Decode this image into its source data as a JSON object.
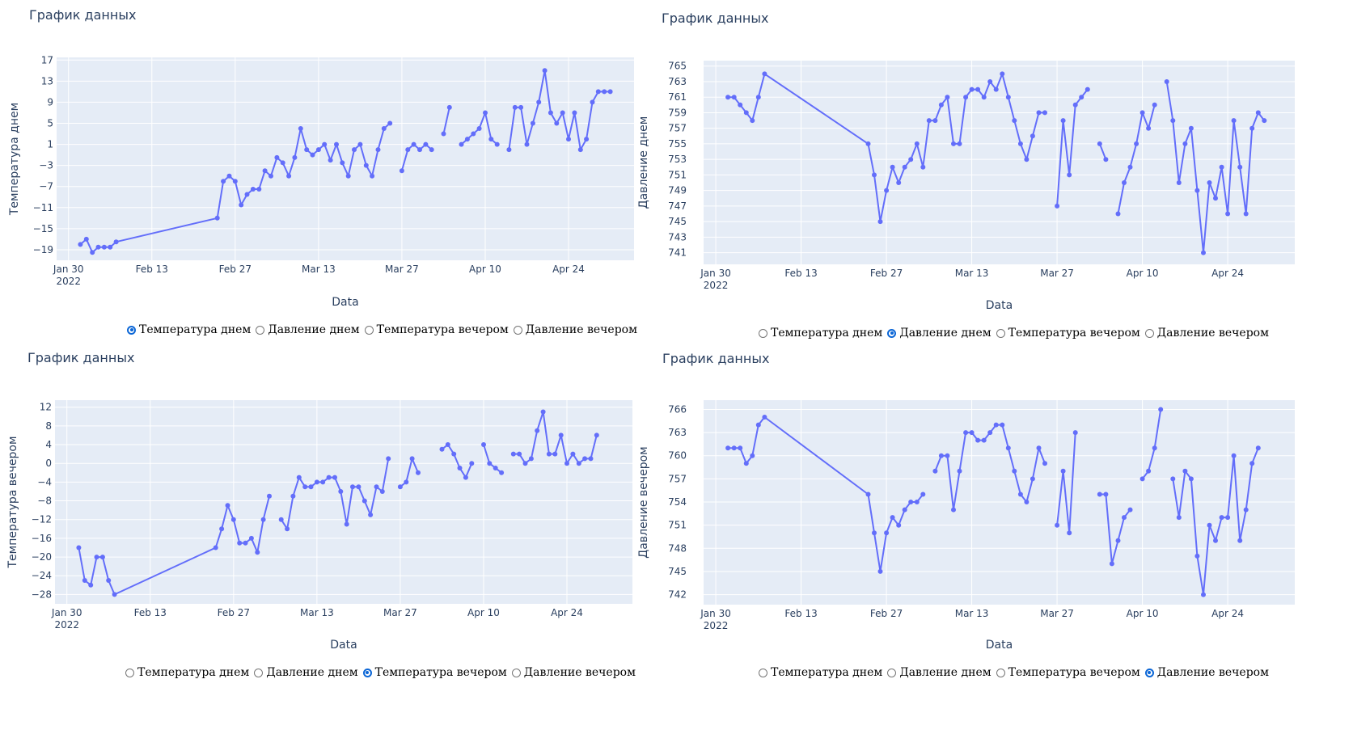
{
  "x_ticks": [
    "Jan 30",
    "Feb 13",
    "Feb 27",
    "Mar 13",
    "Mar 27",
    "Apr 10",
    "Apr 24"
  ],
  "x_tick_year": "2022",
  "radio_options": [
    "Температура днем",
    "Давление днем",
    "Температура вечером",
    "Давление вечером"
  ],
  "colors": {
    "line": "#636efa",
    "plot_bg": "#e5ecf6",
    "grid": "#ffffff",
    "radio_on": "#0b66d6"
  },
  "chart_data": [
    {
      "type": "line",
      "title": "График данных",
      "xlabel": "Data",
      "ylabel": "Температура днем",
      "selected_radio": 0,
      "yticks": [
        17,
        13,
        9,
        5,
        1,
        -3,
        -7,
        -11,
        -15,
        -19
      ],
      "ylim": [
        -21,
        17.5
      ],
      "xlim": [
        "2022-01-28",
        "2022-05-05"
      ],
      "x": [
        "2022-02-01",
        "2022-02-02",
        "2022-02-03",
        "2022-02-04",
        "2022-02-05",
        "2022-02-06",
        "2022-02-07",
        "2022-02-24",
        "2022-02-25",
        "2022-02-26",
        "2022-02-27",
        "2022-02-28",
        "2022-03-01",
        "2022-03-02",
        "2022-03-03",
        "2022-03-04",
        "2022-03-05",
        "2022-03-06",
        "2022-03-07",
        "2022-03-08",
        "2022-03-09",
        "2022-03-10",
        "2022-03-11",
        "2022-03-12",
        "2022-03-13",
        "2022-03-14",
        "2022-03-15",
        "2022-03-16",
        "2022-03-17",
        "2022-03-18",
        "2022-03-19",
        "2022-03-20",
        "2022-03-21",
        "2022-03-22",
        "2022-03-23",
        "2022-03-24",
        "2022-03-25",
        "2022-03-26",
        "2022-03-27",
        "2022-03-28",
        "2022-03-29",
        "2022-03-30",
        "2022-03-31",
        "2022-04-01",
        "2022-04-02",
        "2022-04-03",
        "2022-04-04",
        "2022-04-05",
        "2022-04-06",
        "2022-04-07",
        "2022-04-08",
        "2022-04-09",
        "2022-04-10",
        "2022-04-11",
        "2022-04-12",
        "2022-04-13",
        "2022-04-14",
        "2022-04-15",
        "2022-04-16",
        "2022-04-17",
        "2022-04-18",
        "2022-04-19",
        "2022-04-20",
        "2022-04-21",
        "2022-04-22",
        "2022-04-23",
        "2022-04-24",
        "2022-04-25",
        "2022-04-26",
        "2022-04-27",
        "2022-04-28",
        "2022-04-29",
        "2022-04-30",
        "2022-05-01"
      ],
      "y": [
        -18,
        -17,
        -19.5,
        -18.5,
        -18.5,
        -18.5,
        -17.5,
        -13,
        -6,
        -5,
        -6,
        -10.5,
        -8.5,
        -7.5,
        -7.5,
        -4,
        -5,
        -1.5,
        -2.5,
        -5,
        -1.5,
        4,
        0,
        -1,
        0,
        1,
        -2,
        1,
        -2.5,
        -5,
        0,
        1,
        -3,
        -5,
        0,
        4,
        5,
        null,
        -4,
        0,
        1,
        0,
        1,
        0,
        null,
        3,
        8,
        null,
        1,
        2,
        3,
        4,
        7,
        2,
        1,
        null,
        0,
        8,
        8,
        1,
        5,
        9,
        15,
        7,
        5,
        7,
        2,
        7,
        0,
        2,
        9,
        11,
        11,
        11
      ]
    },
    {
      "type": "line",
      "title": "График данных",
      "xlabel": "Data",
      "ylabel": "Давление днем",
      "selected_radio": 1,
      "yticks": [
        765,
        763,
        761,
        759,
        757,
        755,
        753,
        751,
        749,
        747,
        745,
        743,
        741
      ],
      "ylim": [
        739.5,
        765.7
      ],
      "xlim": [
        "2022-01-28",
        "2022-05-05"
      ],
      "x": [
        "2022-02-01",
        "2022-02-02",
        "2022-02-03",
        "2022-02-04",
        "2022-02-05",
        "2022-02-06",
        "2022-02-07",
        "2022-02-24",
        "2022-02-25",
        "2022-02-26",
        "2022-02-27",
        "2022-02-28",
        "2022-03-01",
        "2022-03-02",
        "2022-03-03",
        "2022-03-04",
        "2022-03-05",
        "2022-03-06",
        "2022-03-07",
        "2022-03-08",
        "2022-03-09",
        "2022-03-10",
        "2022-03-11",
        "2022-03-12",
        "2022-03-13",
        "2022-03-14",
        "2022-03-15",
        "2022-03-16",
        "2022-03-17",
        "2022-03-18",
        "2022-03-19",
        "2022-03-20",
        "2022-03-21",
        "2022-03-22",
        "2022-03-23",
        "2022-03-24",
        "2022-03-25",
        "2022-03-26",
        "2022-03-27",
        "2022-03-28",
        "2022-03-29",
        "2022-03-30",
        "2022-03-31",
        "2022-04-01",
        "2022-04-02",
        "2022-04-03",
        "2022-04-04",
        "2022-04-05",
        "2022-04-06",
        "2022-04-07",
        "2022-04-08",
        "2022-04-09",
        "2022-04-10",
        "2022-04-11",
        "2022-04-12",
        "2022-04-13",
        "2022-04-14",
        "2022-04-15",
        "2022-04-16",
        "2022-04-17",
        "2022-04-18",
        "2022-04-19",
        "2022-04-20",
        "2022-04-21",
        "2022-04-22",
        "2022-04-23",
        "2022-04-24",
        "2022-04-25",
        "2022-04-26",
        "2022-04-27",
        "2022-04-28",
        "2022-04-29",
        "2022-04-30",
        "2022-05-01"
      ],
      "y": [
        761,
        761,
        760,
        759,
        758,
        761,
        764,
        755,
        751,
        745,
        749,
        752,
        750,
        752,
        753,
        755,
        752,
        758,
        758,
        760,
        761,
        755,
        755,
        761,
        762,
        762,
        761,
        763,
        762,
        764,
        761,
        758,
        755,
        753,
        756,
        759,
        759,
        null,
        747,
        758,
        751,
        760,
        761,
        762,
        null,
        755,
        753,
        null,
        746,
        750,
        752,
        755,
        759,
        757,
        760,
        null,
        763,
        758,
        750,
        755,
        757,
        749,
        741,
        750,
        748,
        752,
        746,
        758,
        752,
        746,
        757,
        759,
        758,
        null
      ]
    },
    {
      "type": "line",
      "title": "График данных",
      "xlabel": "Data",
      "ylabel": "Температура вечером",
      "selected_radio": 2,
      "yticks": [
        12,
        8,
        4,
        0,
        -4,
        -8,
        -12,
        -16,
        -20,
        -24,
        -28
      ],
      "ylim": [
        -30,
        13.5
      ],
      "xlim": [
        "2022-01-28",
        "2022-05-05"
      ],
      "x": [
        "2022-02-01",
        "2022-02-02",
        "2022-02-03",
        "2022-02-04",
        "2022-02-05",
        "2022-02-06",
        "2022-02-07",
        "2022-02-24",
        "2022-02-25",
        "2022-02-26",
        "2022-02-27",
        "2022-02-28",
        "2022-03-01",
        "2022-03-02",
        "2022-03-03",
        "2022-03-04",
        "2022-03-05",
        "2022-03-06",
        "2022-03-07",
        "2022-03-08",
        "2022-03-09",
        "2022-03-10",
        "2022-03-11",
        "2022-03-12",
        "2022-03-13",
        "2022-03-14",
        "2022-03-15",
        "2022-03-16",
        "2022-03-17",
        "2022-03-18",
        "2022-03-19",
        "2022-03-20",
        "2022-03-21",
        "2022-03-22",
        "2022-03-23",
        "2022-03-24",
        "2022-03-25",
        "2022-03-26",
        "2022-03-27",
        "2022-03-28",
        "2022-03-29",
        "2022-03-30",
        "2022-03-31",
        "2022-04-01",
        "2022-04-02",
        "2022-04-03",
        "2022-04-04",
        "2022-04-05",
        "2022-04-06",
        "2022-04-07",
        "2022-04-08",
        "2022-04-09",
        "2022-04-10",
        "2022-04-11",
        "2022-04-12",
        "2022-04-13",
        "2022-04-14",
        "2022-04-15",
        "2022-04-16",
        "2022-04-17",
        "2022-04-18",
        "2022-04-19",
        "2022-04-20",
        "2022-04-21",
        "2022-04-22",
        "2022-04-23",
        "2022-04-24",
        "2022-04-25",
        "2022-04-26",
        "2022-04-27",
        "2022-04-28",
        "2022-04-29",
        "2022-04-30",
        "2022-05-01"
      ],
      "y": [
        -18,
        -25,
        -26,
        -20,
        -20,
        -25,
        -28,
        -18,
        -14,
        -9,
        -12,
        -17,
        -17,
        -16,
        -19,
        -12,
        -7,
        null,
        -12,
        -14,
        -7,
        -3,
        -5,
        -5,
        -4,
        -4,
        -3,
        -3,
        -6,
        -13,
        -5,
        -5,
        -8,
        -11,
        -5,
        -6,
        1,
        null,
        -5,
        -4,
        1,
        -2,
        null,
        null,
        null,
        3,
        4,
        2,
        -1,
        -3,
        0,
        null,
        4,
        0,
        -1,
        -2,
        null,
        2,
        2,
        0,
        1,
        7,
        11,
        2,
        2,
        6,
        0,
        2,
        0,
        1,
        1,
        6,
        null,
        null
      ]
    },
    {
      "type": "line",
      "title": "График данных",
      "xlabel": "Data",
      "ylabel": "Давление вечером",
      "selected_radio": 3,
      "yticks": [
        766,
        763,
        760,
        757,
        754,
        751,
        748,
        745,
        742
      ],
      "ylim": [
        740.7,
        767.2
      ],
      "xlim": [
        "2022-01-28",
        "2022-05-05"
      ],
      "x": [
        "2022-02-01",
        "2022-02-02",
        "2022-02-03",
        "2022-02-04",
        "2022-02-05",
        "2022-02-06",
        "2022-02-07",
        "2022-02-24",
        "2022-02-25",
        "2022-02-26",
        "2022-02-27",
        "2022-02-28",
        "2022-03-01",
        "2022-03-02",
        "2022-03-03",
        "2022-03-04",
        "2022-03-05",
        "2022-03-06",
        "2022-03-07",
        "2022-03-08",
        "2022-03-09",
        "2022-03-10",
        "2022-03-11",
        "2022-03-12",
        "2022-03-13",
        "2022-03-14",
        "2022-03-15",
        "2022-03-16",
        "2022-03-17",
        "2022-03-18",
        "2022-03-19",
        "2022-03-20",
        "2022-03-21",
        "2022-03-22",
        "2022-03-23",
        "2022-03-24",
        "2022-03-25",
        "2022-03-26",
        "2022-03-27",
        "2022-03-28",
        "2022-03-29",
        "2022-03-30",
        "2022-03-31",
        "2022-04-01",
        "2022-04-02",
        "2022-04-03",
        "2022-04-04",
        "2022-04-05",
        "2022-04-06",
        "2022-04-07",
        "2022-04-08",
        "2022-04-09",
        "2022-04-10",
        "2022-04-11",
        "2022-04-12",
        "2022-04-13",
        "2022-04-14",
        "2022-04-15",
        "2022-04-16",
        "2022-04-17",
        "2022-04-18",
        "2022-04-19",
        "2022-04-20",
        "2022-04-21",
        "2022-04-22",
        "2022-04-23",
        "2022-04-24",
        "2022-04-25",
        "2022-04-26",
        "2022-04-27",
        "2022-04-28",
        "2022-04-29",
        "2022-04-30",
        "2022-05-01"
      ],
      "y": [
        761,
        761,
        761,
        759,
        760,
        764,
        765,
        755,
        750,
        745,
        750,
        752,
        751,
        753,
        754,
        754,
        755,
        null,
        758,
        760,
        760,
        753,
        758,
        763,
        763,
        762,
        762,
        763,
        764,
        764,
        761,
        758,
        755,
        754,
        757,
        761,
        759,
        null,
        751,
        758,
        750,
        763,
        null,
        null,
        null,
        755,
        755,
        746,
        749,
        752,
        753,
        null,
        757,
        758,
        761,
        766,
        null,
        757,
        752,
        758,
        757,
        747,
        742,
        751,
        749,
        752,
        752,
        760,
        749,
        753,
        759,
        761,
        null,
        null
      ]
    }
  ]
}
